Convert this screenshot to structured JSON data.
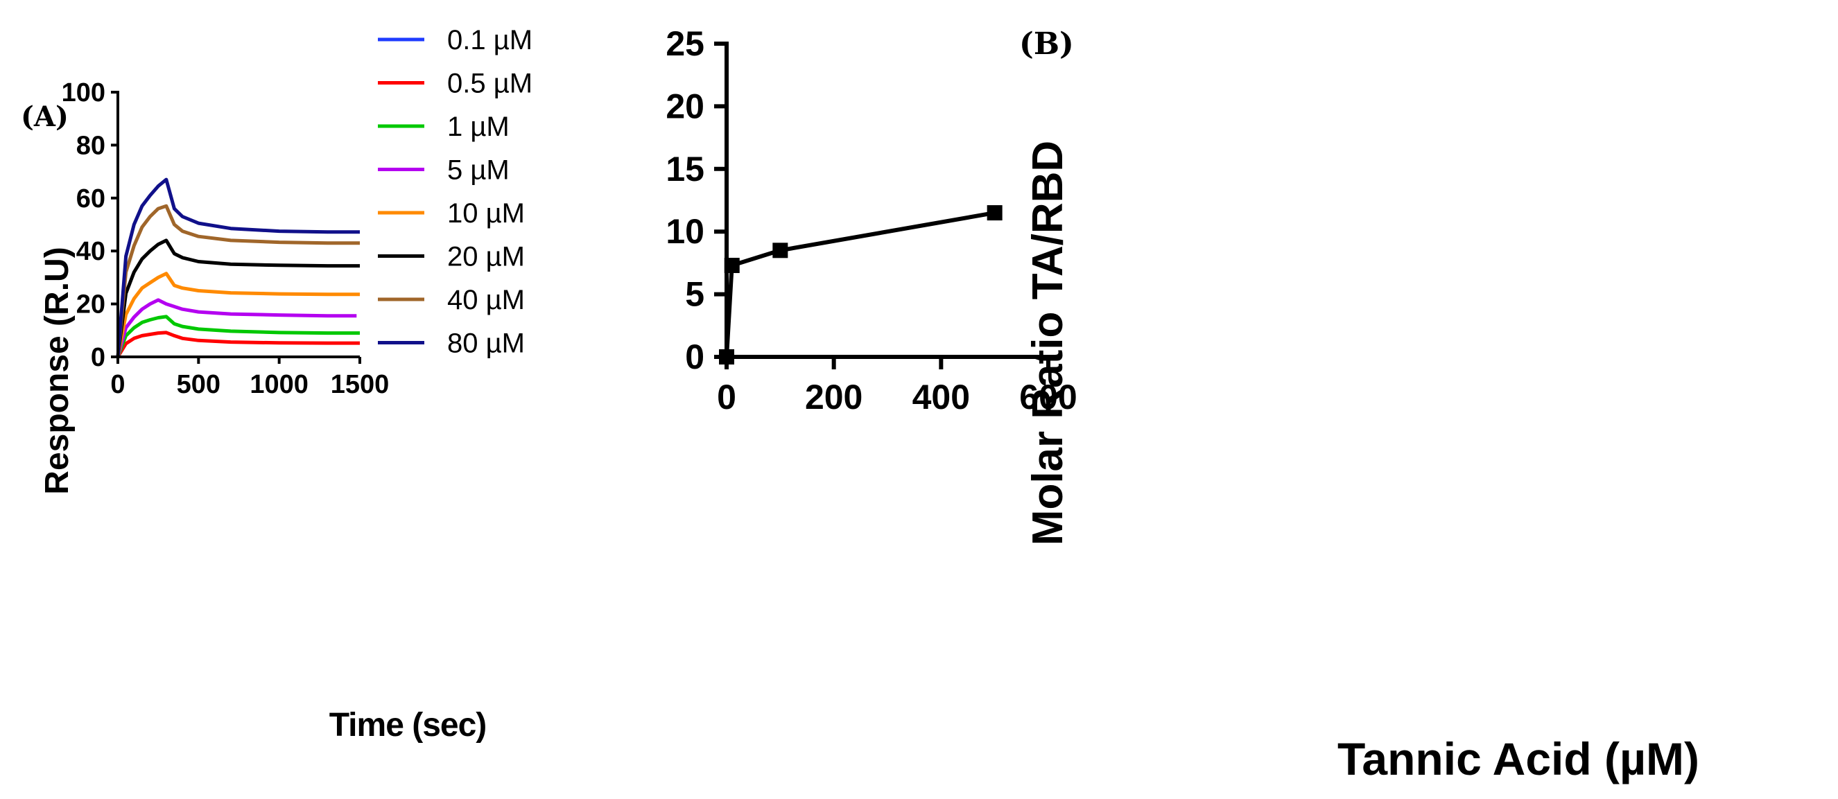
{
  "chart_data": [
    {
      "panel_label": "(A)",
      "type": "line",
      "title": "",
      "xlabel": "Time (sec)",
      "ylabel": "Response (R.U)",
      "xlim": [
        0,
        1500
      ],
      "ylim": [
        0,
        100
      ],
      "xticks": [
        0,
        500,
        1000,
        1500
      ],
      "yticks": [
        0,
        20,
        40,
        60,
        80,
        100
      ],
      "legend_position": "right",
      "injection_end_sec": 300,
      "series": [
        {
          "name": "0.1 µM",
          "color": "#1f3cff",
          "x": [],
          "y": []
        },
        {
          "name": "0.5 µM",
          "color": "#ff0000",
          "x": [
            0,
            50,
            100,
            150,
            200,
            250,
            300,
            350,
            400,
            500,
            700,
            1000,
            1300,
            1500
          ],
          "y": [
            0,
            5,
            7,
            8,
            8.5,
            9,
            9.2,
            8,
            7,
            6.2,
            5.6,
            5.3,
            5.2,
            5.2
          ]
        },
        {
          "name": "1 µM",
          "color": "#00c800",
          "x": [
            0,
            50,
            100,
            150,
            200,
            250,
            300,
            350,
            400,
            500,
            700,
            1000,
            1300,
            1500
          ],
          "y": [
            0,
            8,
            11,
            13,
            14,
            14.8,
            15.2,
            12.5,
            11.5,
            10.5,
            9.7,
            9.2,
            9,
            9
          ]
        },
        {
          "name": "5 µM",
          "color": "#b400f0",
          "x": [
            0,
            50,
            100,
            150,
            200,
            250,
            300,
            350,
            400,
            500,
            700,
            1000,
            1300,
            1480
          ],
          "y": [
            0,
            11,
            15,
            18,
            20,
            21.5,
            20,
            19,
            18,
            17,
            16.2,
            15.8,
            15.5,
            15.5
          ]
        },
        {
          "name": "10 µM",
          "color": "#ff8a00",
          "x": [
            0,
            50,
            100,
            150,
            200,
            250,
            300,
            350,
            400,
            500,
            700,
            1000,
            1300,
            1500
          ],
          "y": [
            0,
            16,
            22,
            26,
            28,
            30,
            31.5,
            27,
            26,
            25,
            24.2,
            23.8,
            23.6,
            23.6
          ]
        },
        {
          "name": "20 µM",
          "color": "#000000",
          "x": [
            0,
            50,
            100,
            150,
            200,
            250,
            300,
            350,
            400,
            500,
            700,
            1000,
            1300,
            1500
          ],
          "y": [
            0,
            24,
            32,
            37,
            40,
            42.5,
            44,
            39,
            37.5,
            36,
            35,
            34.6,
            34.4,
            34.4
          ]
        },
        {
          "name": "40 µM",
          "color": "#a0662a",
          "x": [
            0,
            50,
            100,
            150,
            200,
            250,
            300,
            350,
            400,
            500,
            700,
            1000,
            1300,
            1500
          ],
          "y": [
            0,
            32,
            42,
            49,
            53,
            56,
            57,
            50,
            47.5,
            45.5,
            44,
            43.3,
            43,
            43
          ]
        },
        {
          "name": "80 µM",
          "color": "#10108a",
          "x": [
            0,
            50,
            100,
            150,
            200,
            250,
            300,
            350,
            400,
            500,
            700,
            1000,
            1300,
            1500
          ],
          "y": [
            0,
            38,
            50,
            57,
            61,
            64.5,
            67,
            56,
            53,
            50.5,
            48.5,
            47.5,
            47.2,
            47.2
          ]
        }
      ]
    },
    {
      "panel_label": "(B)",
      "type": "line",
      "title": "",
      "xlabel": "Tannic Acid (µM)",
      "ylabel": "Molar Ratio TA/RBD",
      "xlim": [
        0,
        600
      ],
      "ylim": [
        0,
        25
      ],
      "xticks": [
        0,
        200,
        400,
        600
      ],
      "yticks": [
        0,
        5,
        10,
        15,
        20,
        25
      ],
      "marker": "square",
      "color": "#000000",
      "series": [
        {
          "name": "Molar Ratio TA/RBD",
          "x": [
            0,
            10,
            100,
            500
          ],
          "y": [
            0,
            7.3,
            8.5,
            11.5
          ]
        }
      ]
    }
  ]
}
